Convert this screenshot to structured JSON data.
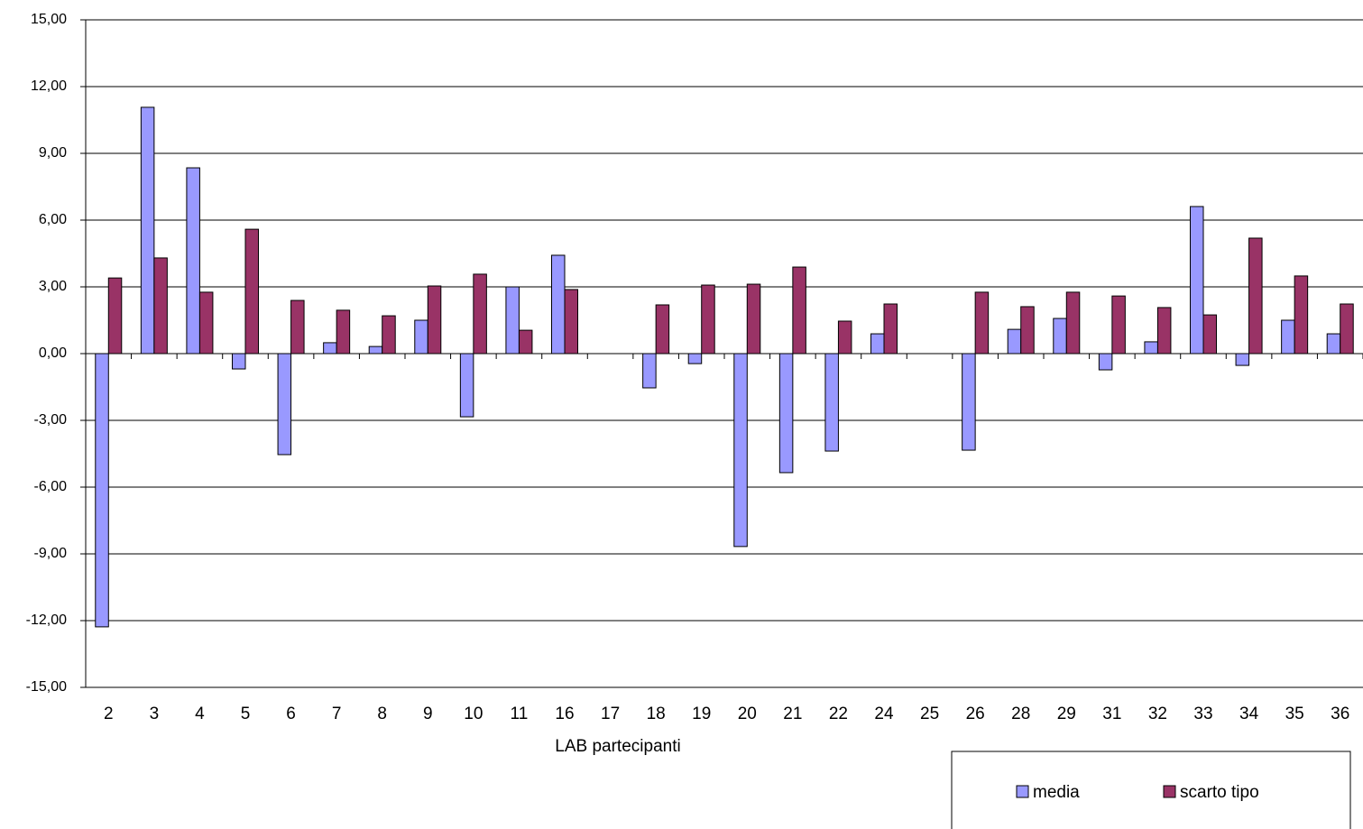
{
  "chart_data": {
    "type": "bar",
    "x_label": "LAB partecipanti",
    "categories": [
      "2",
      "3",
      "4",
      "5",
      "6",
      "7",
      "8",
      "9",
      "10",
      "11",
      "16",
      "17",
      "18",
      "19",
      "20",
      "21",
      "22",
      "24",
      "25",
      "26",
      "28",
      "29",
      "31",
      "32",
      "33",
      "34",
      "35",
      "36"
    ],
    "series": [
      {
        "name": "media",
        "color": "#9999ff",
        "values": [
          -12.28,
          11.07,
          8.35,
          -0.69,
          -4.54,
          0.49,
          0.32,
          1.5,
          -2.84,
          3.0,
          4.42,
          null,
          -1.54,
          -0.45,
          -8.67,
          -5.35,
          -4.38,
          0.89,
          null,
          -4.34,
          1.09,
          1.58,
          -0.73,
          0.53,
          6.61,
          -0.53,
          1.5,
          0.89
        ]
      },
      {
        "name": "scarto tipo",
        "color": "#993366",
        "values": [
          3.4,
          4.3,
          2.76,
          5.59,
          2.39,
          1.95,
          1.7,
          3.04,
          3.57,
          1.05,
          2.88,
          null,
          2.19,
          3.08,
          3.12,
          3.89,
          1.46,
          2.23,
          null,
          2.76,
          2.11,
          2.76,
          2.59,
          2.07,
          1.74,
          5.19,
          3.49,
          2.23
        ]
      }
    ],
    "ylim": [
      -15,
      15
    ],
    "yticks": [
      {
        "value": -15,
        "label": "-15,00"
      },
      {
        "value": -12,
        "label": "-12,00"
      },
      {
        "value": -9,
        "label": "-9,00"
      },
      {
        "value": -6,
        "label": "-6,00"
      },
      {
        "value": -3,
        "label": "-3,00"
      },
      {
        "value": 0,
        "label": "0,00"
      },
      {
        "value": 3,
        "label": "3,00"
      },
      {
        "value": 6,
        "label": "6,00"
      },
      {
        "value": 9,
        "label": "9,00"
      },
      {
        "value": 12,
        "label": "12,00"
      },
      {
        "value": 15,
        "label": "15,00"
      }
    ],
    "grid": true
  }
}
